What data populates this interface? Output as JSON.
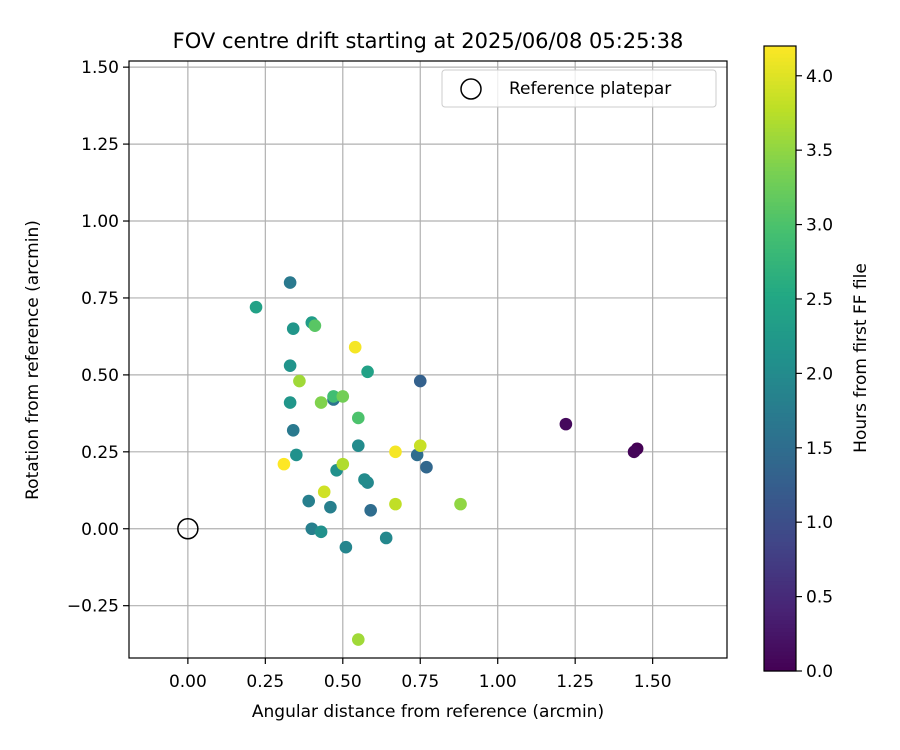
{
  "chart_data": {
    "type": "scatter",
    "title": "FOV centre drift starting at 2025/06/08 05:25:38",
    "xlabel": "Angular distance from reference (arcmin)",
    "ylabel": "Rotation from reference (arcmin)",
    "xlim": [
      -0.19,
      1.74
    ],
    "ylim": [
      -0.42,
      1.52
    ],
    "x_ticks": [
      0.0,
      0.25,
      0.5,
      0.75,
      1.0,
      1.25,
      1.5
    ],
    "x_tick_labels": [
      "0.00",
      "0.25",
      "0.50",
      "0.75",
      "1.00",
      "1.25",
      "1.50"
    ],
    "y_ticks": [
      -0.25,
      0.0,
      0.25,
      0.5,
      0.75,
      1.0,
      1.25,
      1.5
    ],
    "y_tick_labels": [
      "−0.25",
      "0.00",
      "0.25",
      "0.50",
      "0.75",
      "1.00",
      "1.25",
      "1.50"
    ],
    "grid": true,
    "legend": {
      "placement": "top-right",
      "entries": [
        {
          "label": "Reference platepar",
          "marker": "open-circle",
          "color": "#000000"
        }
      ]
    },
    "reference_point": {
      "x": 0.0,
      "y": 0.0
    },
    "colorbar": {
      "label": "Hours from first FF file",
      "range": [
        0.0,
        4.2
      ],
      "ticks": [
        0.0,
        0.5,
        1.0,
        1.5,
        2.0,
        2.5,
        3.0,
        3.5,
        4.0
      ],
      "tick_labels": [
        "0.0",
        "0.5",
        "1.0",
        "1.5",
        "2.0",
        "2.5",
        "3.0",
        "3.5",
        "4.0"
      ],
      "colormap": "viridis"
    },
    "points": [
      {
        "x": 1.45,
        "y": 0.26,
        "hours": 0.0
      },
      {
        "x": 1.44,
        "y": 0.25,
        "hours": 0.05
      },
      {
        "x": 1.22,
        "y": 0.34,
        "hours": 0.1
      },
      {
        "x": 0.75,
        "y": 0.48,
        "hours": 1.3
      },
      {
        "x": 0.77,
        "y": 0.2,
        "hours": 1.4
      },
      {
        "x": 0.74,
        "y": 0.24,
        "hours": 1.5
      },
      {
        "x": 0.59,
        "y": 0.06,
        "hours": 1.5
      },
      {
        "x": 0.47,
        "y": 0.42,
        "hours": 1.6
      },
      {
        "x": 0.34,
        "y": 0.32,
        "hours": 1.7
      },
      {
        "x": 0.33,
        "y": 0.8,
        "hours": 1.7
      },
      {
        "x": 0.39,
        "y": 0.09,
        "hours": 1.8
      },
      {
        "x": 0.46,
        "y": 0.07,
        "hours": 1.8
      },
      {
        "x": 0.4,
        "y": 0.0,
        "hours": 1.8
      },
      {
        "x": 0.51,
        "y": -0.06,
        "hours": 1.9
      },
      {
        "x": 0.64,
        "y": -0.03,
        "hours": 1.95
      },
      {
        "x": 0.58,
        "y": 0.15,
        "hours": 1.95
      },
      {
        "x": 0.57,
        "y": 0.16,
        "hours": 2.0
      },
      {
        "x": 0.55,
        "y": 0.27,
        "hours": 2.0
      },
      {
        "x": 0.35,
        "y": 0.24,
        "hours": 2.1
      },
      {
        "x": 0.43,
        "y": -0.01,
        "hours": 2.1
      },
      {
        "x": 0.48,
        "y": 0.19,
        "hours": 2.1
      },
      {
        "x": 0.33,
        "y": 0.53,
        "hours": 2.15
      },
      {
        "x": 0.34,
        "y": 0.65,
        "hours": 2.2
      },
      {
        "x": 0.33,
        "y": 0.41,
        "hours": 2.2
      },
      {
        "x": 0.4,
        "y": 0.67,
        "hours": 2.3
      },
      {
        "x": 0.58,
        "y": 0.51,
        "hours": 2.4
      },
      {
        "x": 0.22,
        "y": 0.72,
        "hours": 2.4
      },
      {
        "x": 0.47,
        "y": 0.43,
        "hours": 2.9
      },
      {
        "x": 0.55,
        "y": 0.36,
        "hours": 3.0
      },
      {
        "x": 0.41,
        "y": 0.66,
        "hours": 3.1
      },
      {
        "x": 0.5,
        "y": 0.43,
        "hours": 3.3
      },
      {
        "x": 0.43,
        "y": 0.41,
        "hours": 3.4
      },
      {
        "x": 0.88,
        "y": 0.08,
        "hours": 3.5
      },
      {
        "x": 0.36,
        "y": 0.48,
        "hours": 3.6
      },
      {
        "x": 0.5,
        "y": 0.21,
        "hours": 3.7
      },
      {
        "x": 0.55,
        "y": -0.36,
        "hours": 3.6
      },
      {
        "x": 0.67,
        "y": 0.08,
        "hours": 3.8
      },
      {
        "x": 0.75,
        "y": 0.27,
        "hours": 3.85
      },
      {
        "x": 0.44,
        "y": 0.12,
        "hours": 3.9
      },
      {
        "x": 0.67,
        "y": 0.25,
        "hours": 4.15
      },
      {
        "x": 0.54,
        "y": 0.59,
        "hours": 4.15
      },
      {
        "x": 0.31,
        "y": 0.21,
        "hours": 4.2
      }
    ]
  }
}
